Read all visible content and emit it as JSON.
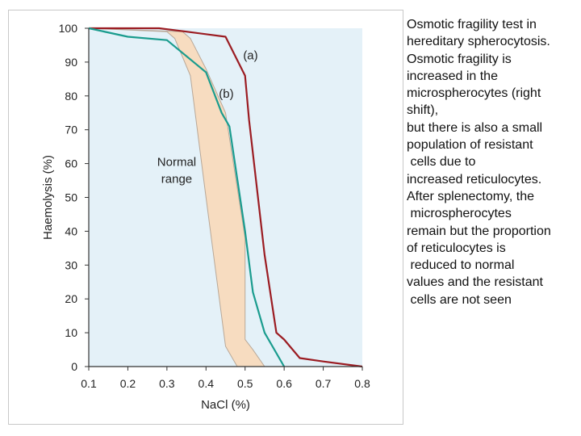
{
  "caption": {
    "text": "Osmotic fragility test in\nhereditary spherocytosis.\nOsmotic fragility is\nincreased in the\nmicrospherocytes (right\nshift),\nbut there is also a small\npopulation of resistant\n cells due to\nincreased reticulocytes.\nAfter splenectomy, the\n microspherocytes\nremain but the proportion\nof reticulocytes is\n reduced to normal\nvalues and the resistant\n cells are not seen"
  },
  "chart_data": {
    "type": "line",
    "xlabel": "NaCl (%)",
    "ylabel": "Haemolysis (%)",
    "xlim": [
      0.1,
      0.8
    ],
    "ylim": [
      0,
      100
    ],
    "xticks": [
      "0.1",
      "0.2",
      "0.3",
      "0.4",
      "0.5",
      "0.6",
      "0.7",
      "0.8"
    ],
    "yticks": [
      "0",
      "10",
      "20",
      "30",
      "40",
      "50",
      "60",
      "70",
      "80",
      "90",
      "100"
    ],
    "grid": false,
    "normal_range": {
      "label_line1": "Normal",
      "label_line2": "range",
      "color": "#f7dcc0",
      "border": "#b8a898",
      "upper": [
        [
          0.1,
          100
        ],
        [
          0.34,
          99
        ],
        [
          0.36,
          97
        ],
        [
          0.4,
          88
        ],
        [
          0.45,
          75
        ],
        [
          0.5,
          38
        ],
        [
          0.5,
          8
        ],
        [
          0.52,
          5
        ],
        [
          0.55,
          0
        ]
      ],
      "lower": [
        [
          0.1,
          100
        ],
        [
          0.3,
          99
        ],
        [
          0.32,
          97
        ],
        [
          0.36,
          86
        ],
        [
          0.4,
          50
        ],
        [
          0.45,
          6
        ],
        [
          0.48,
          0
        ]
      ]
    },
    "series": [
      {
        "name": "(a)",
        "color": "#9b1c22",
        "points": [
          [
            0.1,
            100
          ],
          [
            0.28,
            100
          ],
          [
            0.35,
            99
          ],
          [
            0.45,
            97.5
          ],
          [
            0.5,
            86
          ],
          [
            0.51,
            73
          ],
          [
            0.55,
            33
          ],
          [
            0.58,
            10
          ],
          [
            0.6,
            8
          ],
          [
            0.64,
            2.5
          ],
          [
            0.7,
            1.5
          ],
          [
            0.8,
            0
          ]
        ]
      },
      {
        "name": "(b)",
        "color": "#1a9c8e",
        "points": [
          [
            0.1,
            100
          ],
          [
            0.2,
            97.5
          ],
          [
            0.3,
            96.5
          ],
          [
            0.4,
            87
          ],
          [
            0.44,
            75
          ],
          [
            0.46,
            71
          ],
          [
            0.5,
            40
          ],
          [
            0.52,
            22
          ],
          [
            0.55,
            10
          ],
          [
            0.6,
            0
          ]
        ]
      }
    ]
  }
}
